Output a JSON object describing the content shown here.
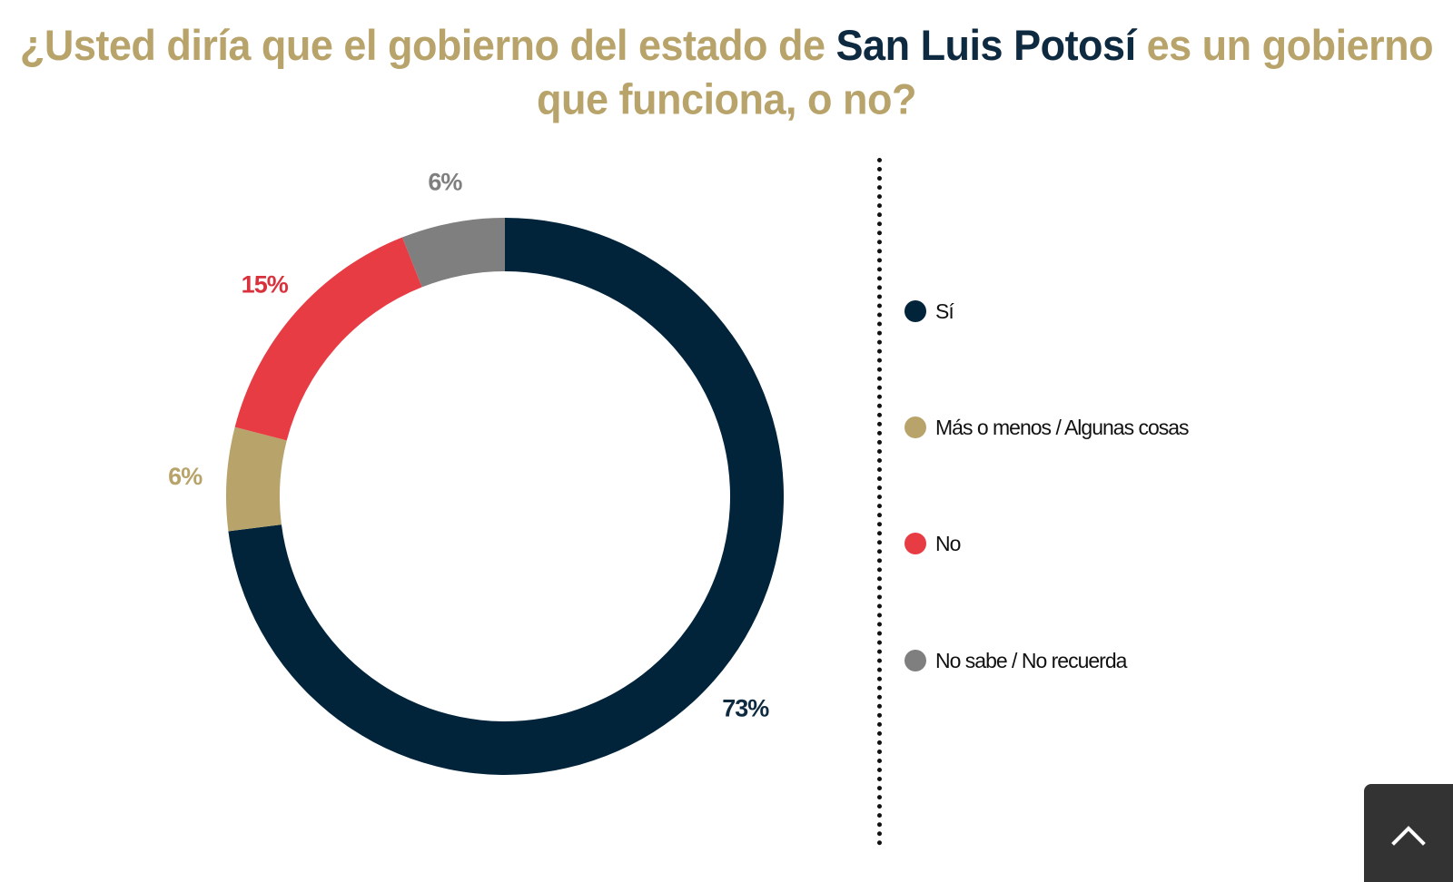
{
  "title": {
    "part1": "¿Usted diría que el gobierno del estado de ",
    "highlight": "San Luis Potosí",
    "part2": " es un gobierno que funciona, o no?"
  },
  "colors": {
    "title": "#b8a46b",
    "highlight": "#0e2a40"
  },
  "chart_data": {
    "type": "pie",
    "variant": "donut",
    "start": "top",
    "direction": "clockwise",
    "slices": [
      {
        "label": "Sí",
        "value": 73,
        "display": "73%",
        "color": "#02243b",
        "label_color": "#0e2a40"
      },
      {
        "label": "Más o menos / Algunas cosas",
        "value": 6,
        "display": "6%",
        "color": "#b8a46b",
        "label_color": "#b8a46b"
      },
      {
        "label": "No",
        "value": 15,
        "display": "15%",
        "color": "#e83c44",
        "label_color": "#d9323c"
      },
      {
        "label": "No sabe / No recuerda",
        "value": 6,
        "display": "6%",
        "color": "#7f7f7f",
        "label_color": "#7f7f7f"
      }
    ],
    "legend_position": "right"
  },
  "scroll_top": {
    "icon": "chevron-up-icon"
  }
}
